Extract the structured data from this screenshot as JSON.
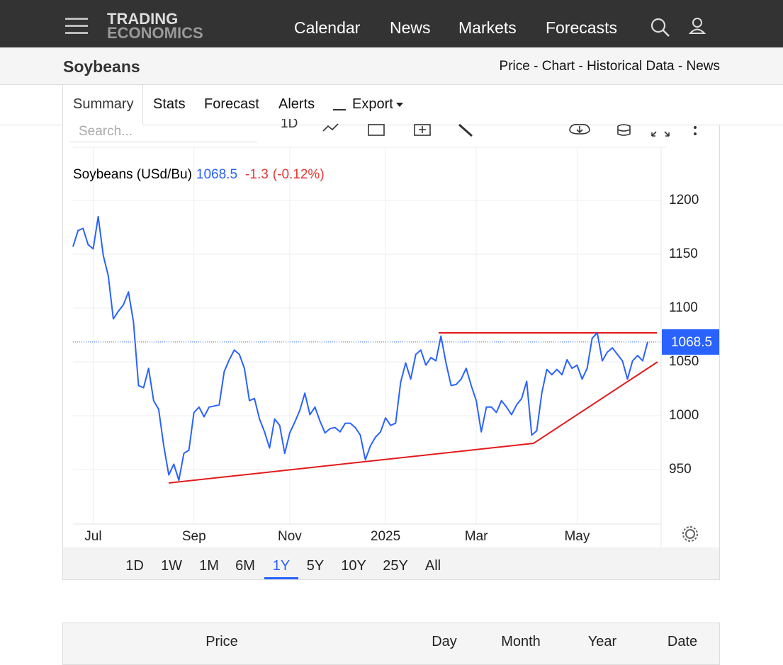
{
  "nav": {
    "logo": [
      "TRADING",
      "ECONOMICS"
    ],
    "links": [
      "Calendar",
      "News",
      "Markets",
      "Forecasts"
    ]
  },
  "header": {
    "title": "Soybeans",
    "links": "Price - Chart - Historical Data - News"
  },
  "tabs": [
    "Summary",
    "Stats",
    "Forecast",
    "Alerts",
    "Export"
  ],
  "toolbar": {
    "search_placeholder": "Search...",
    "interval": "1D"
  },
  "chart_data": {
    "type": "line",
    "last_value": 1068.5,
    "change": -1.3,
    "change_label": "(-0.12%)",
    "categories": [
      null,
      null,
      null,
      null,
      "Jul",
      null,
      null,
      null,
      null,
      null,
      null,
      null,
      null,
      null,
      null,
      null,
      null,
      null,
      null,
      null,
      null,
      null,
      null,
      null,
      "Sep",
      null,
      null,
      null,
      null,
      null,
      null,
      null,
      null,
      null,
      null,
      null,
      null,
      null,
      null,
      null,
      null,
      null,
      null,
      "Nov",
      null,
      null,
      null,
      null,
      null,
      null,
      null,
      null,
      null,
      null,
      null,
      null,
      null,
      null,
      null,
      null,
      null,
      null,
      "2025",
      null,
      null,
      null,
      null,
      null,
      null,
      null,
      null,
      null,
      null,
      null,
      null,
      null,
      null,
      null,
      null,
      null,
      "Mar",
      null,
      null,
      null,
      null,
      null,
      null,
      null,
      null,
      null,
      null,
      null,
      null,
      null,
      null,
      null,
      null,
      null,
      null,
      null,
      "May",
      null,
      null,
      null,
      null,
      null,
      null,
      null,
      null,
      null,
      null,
      null,
      null,
      null,
      null
    ],
    "series": [
      {
        "name": "Soybeans (USd/Bu)",
        "color": "#2962ff",
        "values": [
          1157,
          1172,
          1174,
          1159,
          1155,
          1185,
          1149,
          1130,
          1090,
          1097,
          1103,
          1115,
          1087,
          1028,
          1026,
          1044,
          1014,
          1006,
          972,
          945,
          955,
          940,
          965,
          968,
          1003,
          1008,
          999,
          1008,
          1009,
          1010,
          1041,
          1052,
          1061,
          1057,
          1044,
          1014,
          1016,
          997,
          985,
          970,
          997,
          991,
          965,
          984,
          994,
          1005,
          1021,
          1001,
          1008,
          995,
          984,
          988,
          989,
          985,
          993,
          993,
          989,
          982,
          959,
          972,
          980,
          985,
          998,
          991,
          993,
          1031,
          1049,
          1034,
          1057,
          1061,
          1047,
          1054,
          1051,
          1074,
          1049,
          1028,
          1029,
          1034,
          1044,
          1028,
          1014,
          985,
          1008,
          1008,
          1003,
          1014,
          1008,
          1001,
          1010,
          1016,
          1032,
          982,
          986,
          1021,
          1043,
          1038,
          1043,
          1038,
          1052,
          1044,
          1047,
          1034,
          1044,
          1072,
          1077,
          1051,
          1059,
          1063,
          1057,
          1051,
          1034,
          1051,
          1056,
          1051,
          1068.5
        ]
      }
    ],
    "ylim": [
      900,
      1250
    ],
    "yticks": [
      950,
      1000,
      1050,
      1100,
      1150,
      1200
    ],
    "grid": true,
    "change_color": "#e53935"
  },
  "ranges": {
    "options": [
      "1D",
      "1W",
      "1M",
      "6M",
      "1Y",
      "5Y",
      "10Y",
      "25Y",
      "All"
    ],
    "active": 4
  },
  "table": {
    "headers": [
      "Price",
      "Day",
      "Month",
      "Year",
      "Date"
    ]
  }
}
